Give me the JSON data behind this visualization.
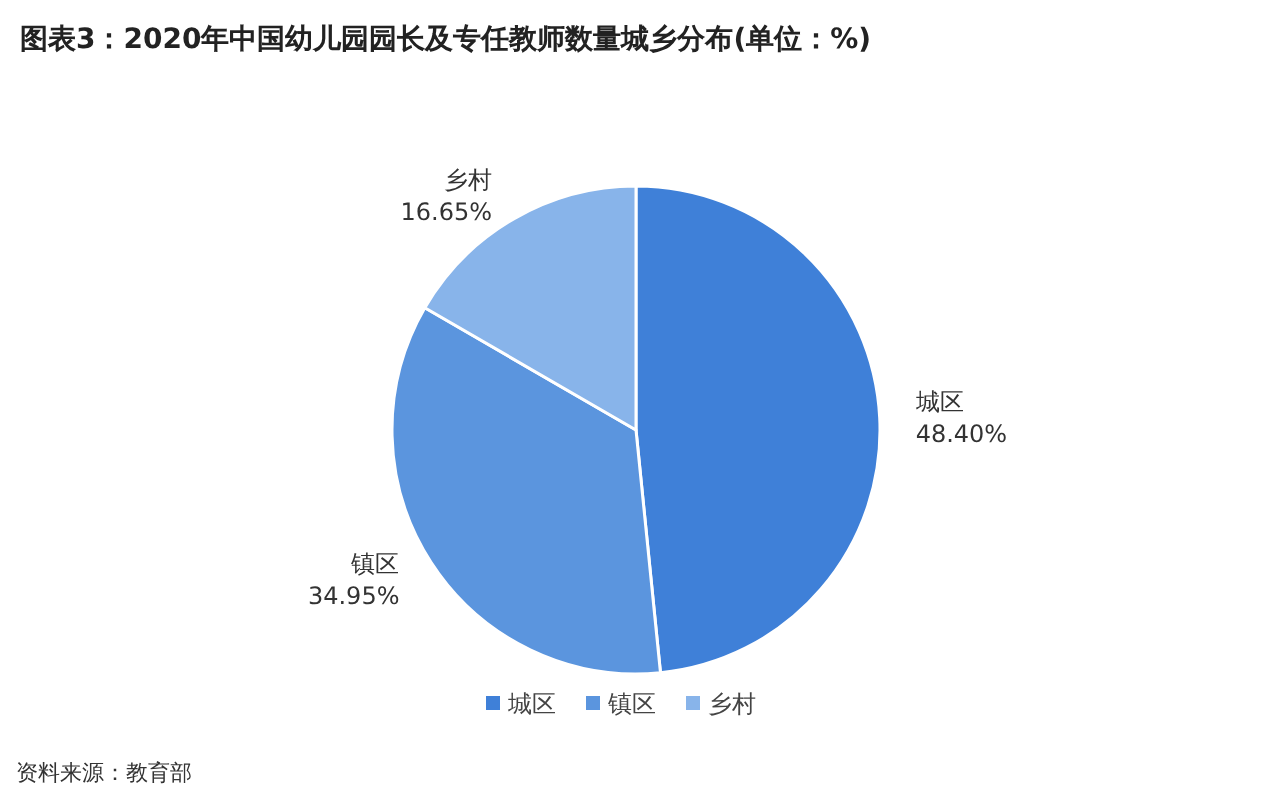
{
  "chart_data": {
    "type": "pie",
    "title": "图表3：2020年中国幼儿园园长及专任教师数量城乡分布(单位：%)",
    "categories": [
      "城区",
      "镇区",
      "乡村"
    ],
    "values": [
      48.4,
      34.95,
      16.65
    ],
    "colors": [
      "#3f80d8",
      "#5b95de",
      "#88b4ea"
    ],
    "value_labels": [
      "48.40%",
      "34.95%",
      "16.65%"
    ],
    "legend": "bottom",
    "annotations": [
      "资料来源：教育部"
    ]
  }
}
